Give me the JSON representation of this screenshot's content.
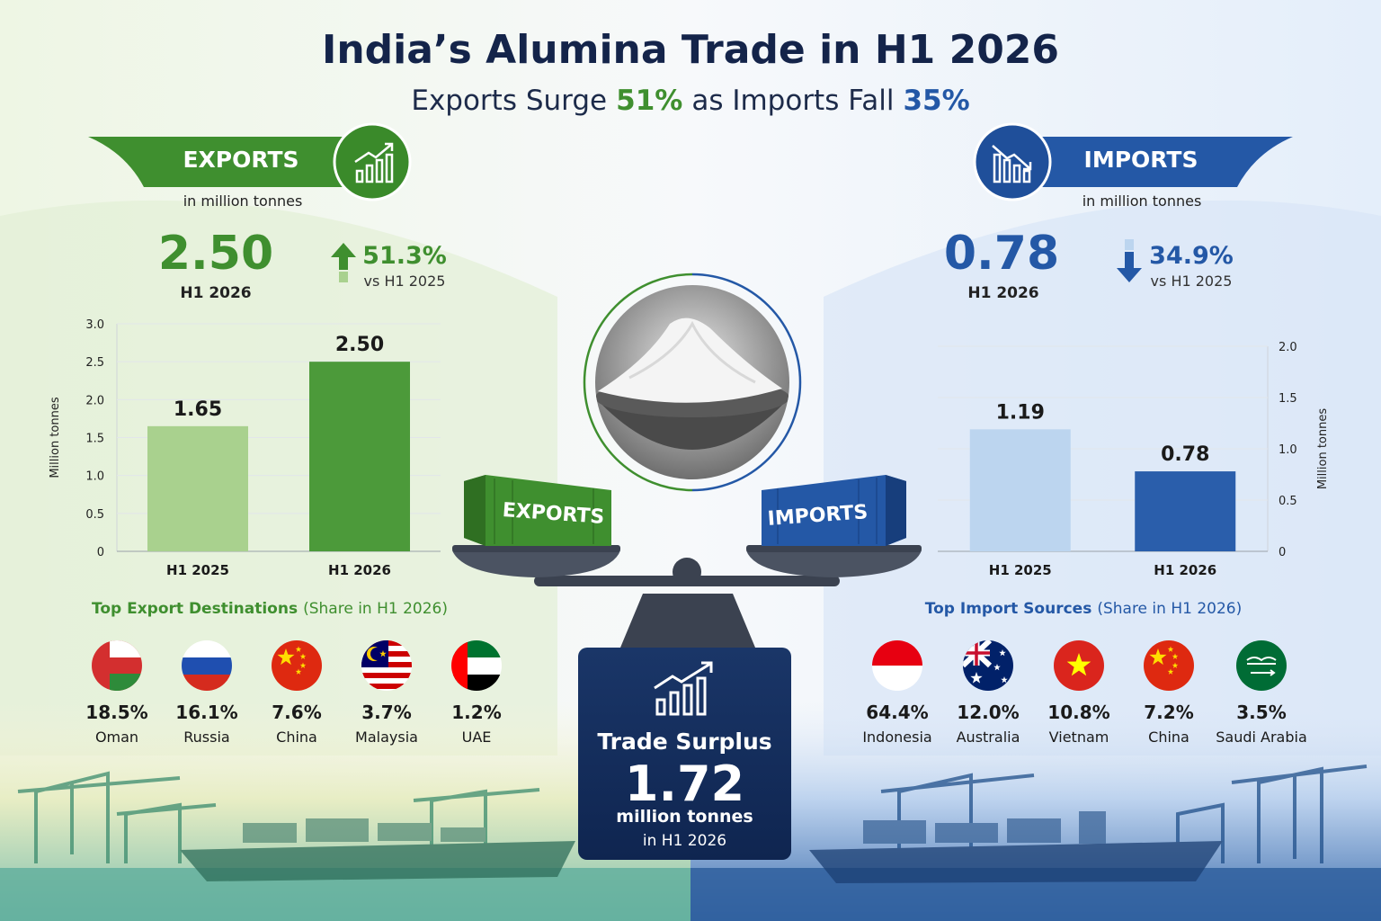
{
  "title": "India’s Alumina Trade in H1 2026",
  "subtitle": [
    "Exports Surge",
    "51%",
    "as Imports Fall",
    "35%"
  ],
  "exports": {
    "header": "EXPORTS",
    "unit": "in million tonnes",
    "total": "2.50",
    "period": "H1 2026",
    "change": "51.3%",
    "change_note": "vs H1 2025",
    "top_title": "Top Export Destinations",
    "top_note": "(Share in H1 2026)",
    "partners": [
      {
        "share": "18.5%",
        "country": "Oman"
      },
      {
        "share": "16.1%",
        "country": "Russia"
      },
      {
        "share": "7.6%",
        "country": "China"
      },
      {
        "share": "3.7%",
        "country": "Malaysia"
      },
      {
        "share": "1.2%",
        "country": "UAE"
      }
    ]
  },
  "imports": {
    "header": "IMPORTS",
    "unit": "in million tonnes",
    "total": "0.78",
    "period": "H1 2026",
    "change": "34.9%",
    "change_note": "vs H1 2025",
    "top_title": "Top Import Sources",
    "top_note": "(Share in H1 2026)",
    "partners": [
      {
        "share": "64.4%",
        "country": "Indonesia"
      },
      {
        "share": "12.0%",
        "country": "Australia"
      },
      {
        "share": "10.8%",
        "country": "Vietnam"
      },
      {
        "share": "7.2%",
        "country": "China"
      },
      {
        "share": "3.5%",
        "country": "Saudi Arabia"
      }
    ]
  },
  "surplus": {
    "label": "Trade Surplus",
    "value": "1.72",
    "unit": "million tonnes",
    "period": "in H1 2026"
  },
  "chart_data": [
    {
      "type": "bar",
      "y_label": "Million tonnes",
      "categories": [
        "H1 2025",
        "H1 2026"
      ],
      "values": [
        1.65,
        2.5
      ],
      "value_labels": [
        "1.65",
        "2.50"
      ],
      "colors": [
        "#a9d18e",
        "#4c9a3a"
      ],
      "ylim": [
        0,
        3
      ],
      "yticks": [
        0,
        0.5,
        {
          "value": 1,
          "label": "1.0"
        },
        1.5,
        {
          "value": 2,
          "label": "2.0"
        },
        2.5,
        {
          "value": 3,
          "label": "3.0"
        }
      ],
      "axis_side": "left",
      "grid": true
    },
    {
      "type": "bar",
      "y_label": "Million tonnes",
      "categories": [
        "H1 2025",
        "H1 2026"
      ],
      "values": [
        1.19,
        0.78
      ],
      "value_labels": [
        "1.19",
        "0.78"
      ],
      "colors": [
        "#bcd5ef",
        "#2a5eab"
      ],
      "ylim": [
        0,
        2
      ],
      "yticks": [
        0,
        0.5,
        {
          "value": 1,
          "label": "1.0"
        },
        1.5,
        {
          "value": 2,
          "label": "2.0"
        }
      ],
      "axis_side": "right",
      "grid": true
    }
  ]
}
